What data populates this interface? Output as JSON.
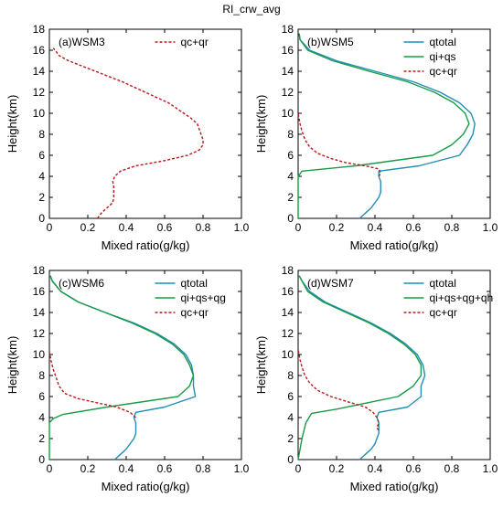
{
  "figure_title": "RI_crw_avg",
  "colors": {
    "qtotal": "#1f8fb4",
    "qice": "#1a9a46",
    "qcr": "#b81818"
  },
  "chart_data": [
    {
      "type": "line",
      "panel_label": "(a)WSM3",
      "xlabel": "Mixed ratio(g/kg)",
      "ylabel": "Height(km)",
      "xlim": [
        0,
        1.0
      ],
      "ylim": [
        0,
        18
      ],
      "xticks": [
        "0",
        "0.2",
        "0.4",
        "0.6",
        "0.8",
        "1.0"
      ],
      "yticks": [
        "0",
        "2",
        "4",
        "6",
        "8",
        "10",
        "12",
        "14",
        "16",
        "18"
      ],
      "grid": false,
      "legend_position": "top-right",
      "series": [
        {
          "name": "qc+qr",
          "style": "dashed",
          "color_key": "qcr",
          "points": [
            [
              0.25,
              0
            ],
            [
              0.27,
              0.5
            ],
            [
              0.3,
              1
            ],
            [
              0.33,
              1.5
            ],
            [
              0.335,
              2
            ],
            [
              0.335,
              2.5
            ],
            [
              0.335,
              3
            ],
            [
              0.33,
              3.5
            ],
            [
              0.34,
              4
            ],
            [
              0.37,
              4.5
            ],
            [
              0.45,
              5
            ],
            [
              0.6,
              5.5
            ],
            [
              0.72,
              6
            ],
            [
              0.78,
              6.5
            ],
            [
              0.8,
              7
            ],
            [
              0.8,
              7.5
            ],
            [
              0.79,
              8
            ],
            [
              0.78,
              8.5
            ],
            [
              0.77,
              9
            ],
            [
              0.74,
              9.5
            ],
            [
              0.7,
              10
            ],
            [
              0.66,
              10.5
            ],
            [
              0.62,
              11
            ],
            [
              0.56,
              11.5
            ],
            [
              0.5,
              12
            ],
            [
              0.44,
              12.5
            ],
            [
              0.38,
              13
            ],
            [
              0.31,
              13.5
            ],
            [
              0.24,
              14
            ],
            [
              0.17,
              14.5
            ],
            [
              0.1,
              15
            ],
            [
              0.05,
              15.5
            ],
            [
              0.03,
              16
            ],
            [
              0.02,
              16.2
            ]
          ]
        }
      ]
    },
    {
      "type": "line",
      "panel_label": "(b)WSM5",
      "xlabel": "Mixed ratio(g/kg)",
      "ylabel": "Height(km)",
      "xlim": [
        0,
        1.0
      ],
      "ylim": [
        0,
        18
      ],
      "xticks": [
        "0",
        "0.2",
        "0.4",
        "0.6",
        "0.8",
        "1.0"
      ],
      "yticks": [
        "0",
        "2",
        "4",
        "6",
        "8",
        "10",
        "12",
        "14",
        "16",
        "18"
      ],
      "grid": false,
      "legend_position": "top-right",
      "series": [
        {
          "name": "qtotal",
          "style": "solid",
          "color_key": "qtotal",
          "points": [
            [
              0.32,
              0
            ],
            [
              0.35,
              0.5
            ],
            [
              0.38,
              1
            ],
            [
              0.4,
              1.5
            ],
            [
              0.42,
              2
            ],
            [
              0.43,
              2.5
            ],
            [
              0.43,
              3
            ],
            [
              0.43,
              3.5
            ],
            [
              0.42,
              4
            ],
            [
              0.42,
              4.5
            ],
            [
              0.63,
              5
            ],
            [
              0.84,
              6
            ],
            [
              0.88,
              7
            ],
            [
              0.91,
              8
            ],
            [
              0.92,
              9
            ],
            [
              0.9,
              10
            ],
            [
              0.84,
              11
            ],
            [
              0.74,
              12
            ],
            [
              0.6,
              13
            ],
            [
              0.4,
              14
            ],
            [
              0.2,
              15
            ],
            [
              0.06,
              16
            ],
            [
              0.01,
              17
            ],
            [
              0.005,
              17.6
            ]
          ]
        },
        {
          "name": "qi+qs",
          "style": "solid",
          "color_key": "qice",
          "points": [
            [
              0,
              0
            ],
            [
              0,
              3
            ],
            [
              0,
              4
            ],
            [
              0.02,
              4.5
            ],
            [
              0.3,
              5
            ],
            [
              0.7,
              6
            ],
            [
              0.8,
              7
            ],
            [
              0.86,
              8
            ],
            [
              0.89,
              9
            ],
            [
              0.87,
              10
            ],
            [
              0.81,
              11
            ],
            [
              0.71,
              12
            ],
            [
              0.57,
              13
            ],
            [
              0.37,
              14
            ],
            [
              0.18,
              15
            ],
            [
              0.05,
              16
            ],
            [
              0.01,
              17
            ],
            [
              0.005,
              17.6
            ]
          ]
        },
        {
          "name": "qc+qr",
          "style": "dashed",
          "color_key": "qcr",
          "points": [
            [
              0.42,
              4
            ],
            [
              0.43,
              4.3
            ],
            [
              0.42,
              4.7
            ],
            [
              0.35,
              5
            ],
            [
              0.25,
              5.3
            ],
            [
              0.17,
              5.7
            ],
            [
              0.1,
              6.2
            ],
            [
              0.06,
              6.8
            ],
            [
              0.035,
              7.5
            ],
            [
              0.02,
              8.3
            ],
            [
              0.01,
              9
            ],
            [
              0.005,
              9.5
            ],
            [
              0,
              10
            ]
          ]
        }
      ]
    },
    {
      "type": "line",
      "panel_label": "(c)WSM6",
      "xlabel": "Mixed ratio(g/kg)",
      "ylabel": "Height(km)",
      "xlim": [
        0,
        1.0
      ],
      "ylim": [
        0,
        18
      ],
      "xticks": [
        "0",
        "0.2",
        "0.4",
        "0.6",
        "0.8",
        "1.0"
      ],
      "yticks": [
        "0",
        "2",
        "4",
        "6",
        "8",
        "10",
        "12",
        "14",
        "16",
        "18"
      ],
      "grid": false,
      "legend_position": "top-right",
      "series": [
        {
          "name": "qtotal",
          "style": "solid",
          "color_key": "qtotal",
          "points": [
            [
              0.34,
              0
            ],
            [
              0.37,
              0.5
            ],
            [
              0.4,
              1
            ],
            [
              0.42,
              1.5
            ],
            [
              0.44,
              2
            ],
            [
              0.45,
              2.5
            ],
            [
              0.45,
              3
            ],
            [
              0.45,
              3.5
            ],
            [
              0.44,
              4
            ],
            [
              0.45,
              4.5
            ],
            [
              0.6,
              5
            ],
            [
              0.76,
              6
            ],
            [
              0.75,
              7
            ],
            [
              0.75,
              8
            ],
            [
              0.74,
              9
            ],
            [
              0.71,
              10
            ],
            [
              0.65,
              11
            ],
            [
              0.56,
              12
            ],
            [
              0.44,
              13
            ],
            [
              0.29,
              14
            ],
            [
              0.15,
              15
            ],
            [
              0.06,
              16
            ],
            [
              0.015,
              17
            ],
            [
              0.005,
              17.5
            ]
          ]
        },
        {
          "name": "qi+qs+qg",
          "style": "solid",
          "color_key": "qice",
          "points": [
            [
              0,
              0
            ],
            [
              0,
              3.5
            ],
            [
              0.02,
              3.9
            ],
            [
              0.07,
              4.3
            ],
            [
              0.3,
              5
            ],
            [
              0.67,
              6
            ],
            [
              0.73,
              7
            ],
            [
              0.75,
              8
            ],
            [
              0.73,
              9
            ],
            [
              0.7,
              10
            ],
            [
              0.64,
              11
            ],
            [
              0.55,
              12
            ],
            [
              0.43,
              13
            ],
            [
              0.29,
              14
            ],
            [
              0.15,
              15
            ],
            [
              0.06,
              16
            ],
            [
              0.015,
              17
            ],
            [
              0.005,
              17.5
            ]
          ]
        },
        {
          "name": "qc+qr",
          "style": "dashed",
          "color_key": "qcr",
          "points": [
            [
              0.45,
              4
            ],
            [
              0.42,
              4.5
            ],
            [
              0.35,
              5
            ],
            [
              0.25,
              5.4
            ],
            [
              0.15,
              5.8
            ],
            [
              0.08,
              6.3
            ],
            [
              0.05,
              7
            ],
            [
              0.035,
              7.8
            ],
            [
              0.02,
              8.6
            ],
            [
              0.01,
              9.3
            ],
            [
              0.005,
              9.8
            ],
            [
              0,
              10.2
            ]
          ]
        }
      ]
    },
    {
      "type": "line",
      "panel_label": "(d)WSM7",
      "xlabel": "Mixed ratio(g/kg)",
      "ylabel": "Height(km)",
      "xlim": [
        0,
        1.0
      ],
      "ylim": [
        0,
        18
      ],
      "xticks": [
        "0",
        "0.2",
        "0.4",
        "0.6",
        "0.8",
        "1.0"
      ],
      "yticks": [
        "0",
        "2",
        "4",
        "6",
        "8",
        "10",
        "12",
        "14",
        "16",
        "18"
      ],
      "grid": false,
      "legend_position": "top-right",
      "series": [
        {
          "name": "qtotal",
          "style": "solid",
          "color_key": "qtotal",
          "points": [
            [
              0.32,
              0
            ],
            [
              0.35,
              0.5
            ],
            [
              0.38,
              1
            ],
            [
              0.4,
              1.5
            ],
            [
              0.41,
              2
            ],
            [
              0.42,
              2.5
            ],
            [
              0.42,
              3
            ],
            [
              0.42,
              3.5
            ],
            [
              0.41,
              4
            ],
            [
              0.42,
              4.5
            ],
            [
              0.57,
              5
            ],
            [
              0.64,
              6
            ],
            [
              0.64,
              7
            ],
            [
              0.66,
              8
            ],
            [
              0.65,
              9
            ],
            [
              0.62,
              10
            ],
            [
              0.56,
              11
            ],
            [
              0.48,
              12
            ],
            [
              0.38,
              13
            ],
            [
              0.26,
              14
            ],
            [
              0.14,
              15
            ],
            [
              0.06,
              16
            ],
            [
              0.02,
              17
            ],
            [
              0.005,
              17.5
            ]
          ]
        },
        {
          "name": "qi+qs+qg+qh",
          "style": "solid",
          "color_key": "qice",
          "points": [
            [
              0,
              0
            ],
            [
              0.01,
              1
            ],
            [
              0.02,
              2
            ],
            [
              0.04,
              3.5
            ],
            [
              0.07,
              4.4
            ],
            [
              0.2,
              4.8
            ],
            [
              0.52,
              6
            ],
            [
              0.6,
              7
            ],
            [
              0.64,
              8
            ],
            [
              0.64,
              9
            ],
            [
              0.61,
              10
            ],
            [
              0.55,
              11
            ],
            [
              0.47,
              12
            ],
            [
              0.37,
              13
            ],
            [
              0.25,
              14
            ],
            [
              0.13,
              15
            ],
            [
              0.05,
              16
            ],
            [
              0.02,
              17
            ],
            [
              0.005,
              17.5
            ]
          ]
        },
        {
          "name": "qc+qr",
          "style": "dashed",
          "color_key": "qcr",
          "points": [
            [
              0.42,
              2.8
            ],
            [
              0.41,
              3
            ],
            [
              0.42,
              3.5
            ],
            [
              0.41,
              4
            ],
            [
              0.39,
              4.5
            ],
            [
              0.35,
              5
            ],
            [
              0.26,
              5.5
            ],
            [
              0.17,
              6
            ],
            [
              0.1,
              6.6
            ],
            [
              0.06,
              7.3
            ],
            [
              0.035,
              8
            ],
            [
              0.02,
              8.8
            ],
            [
              0.01,
              9.5
            ],
            [
              0.005,
              10
            ],
            [
              0,
              10.5
            ]
          ]
        }
      ]
    }
  ]
}
